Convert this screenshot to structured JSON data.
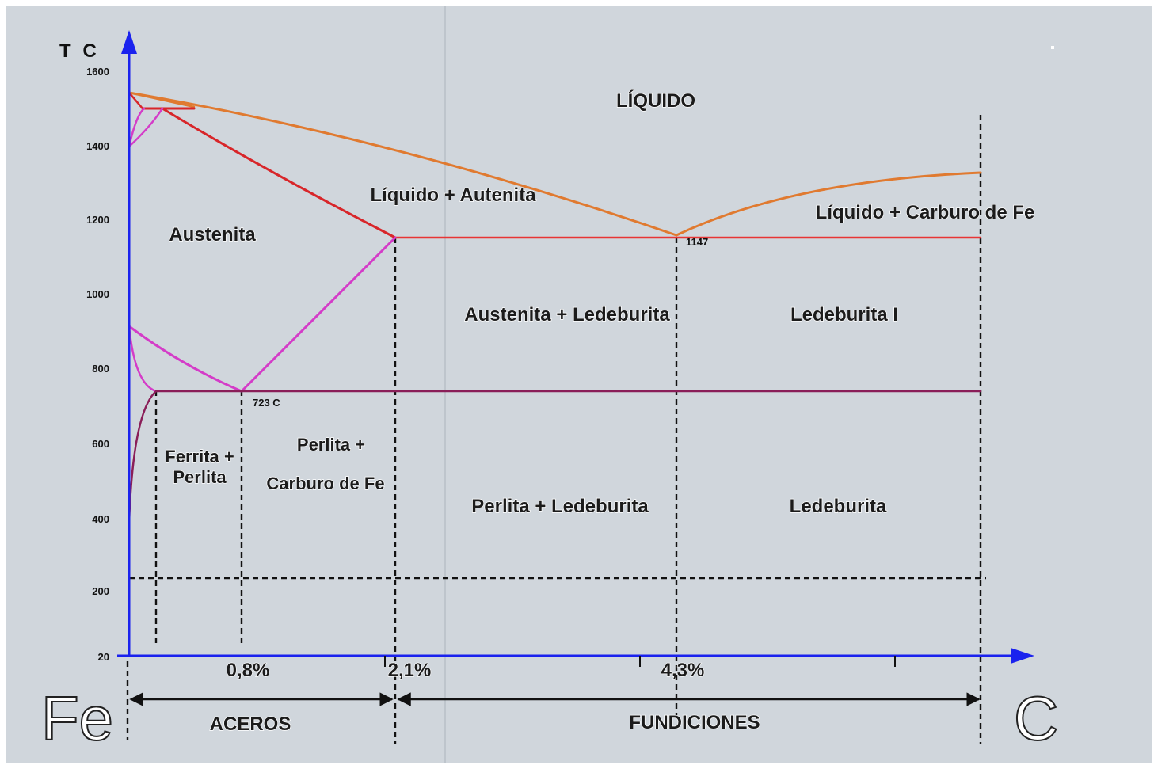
{
  "diagram": {
    "axis": {
      "y_label": "T C",
      "y_ticks": [
        {
          "label": "1600",
          "value": 1600
        },
        {
          "label": "1400",
          "value": 1400
        },
        {
          "label": "1200",
          "value": 1200
        },
        {
          "label": "1000",
          "value": 1000
        },
        {
          "label": "800",
          "value": 800
        },
        {
          "label": "600",
          "value": 600
        },
        {
          "label": "400",
          "value": 400
        },
        {
          "label": "200",
          "value": 200
        },
        {
          "label": "20",
          "value": 20
        }
      ],
      "x_ticks": [
        {
          "label": "0,8%",
          "value": 0.8
        },
        {
          "label": "2,1%",
          "value": 2.1
        },
        {
          "label": "4,3%",
          "value": 4.3
        }
      ],
      "left_element": "Fe",
      "right_element": "C"
    },
    "regions": {
      "liquido": "LÍQUIDO",
      "liquido_austenita": "Líquido + Autenita",
      "liquido_carburo": "Líquido + Carburo de Fe",
      "austenita": "Austenita",
      "austenita_ledeburita": "Austenita + Ledeburita",
      "ledeburita_1": "Ledeburita I",
      "ferrita_perlita_1": "Ferrita +",
      "ferrita_perlita_2": "Perlita",
      "perlita_carburo_1": "Perlita +",
      "perlita_carburo_2": "Carburo de Fe",
      "perlita_ledeburita": "Perlita + Ledeburita",
      "ledeburita": "Ledeburita"
    },
    "annotations": {
      "eutectic_temp": "1147",
      "eutectoid_temp": "723 C"
    },
    "ranges": {
      "aceros": "ACEROS",
      "fundiciones": "FUNDICIONES"
    },
    "colors": {
      "background": "#d0d6dc",
      "axis": "#1a22ee",
      "liquidus": "#e07a30",
      "solidus": "#d8262a",
      "eutectic_line": "#e83535",
      "austenite_boundary": "#d43cc8",
      "eutectoid_line": "#8a1e58"
    }
  }
}
